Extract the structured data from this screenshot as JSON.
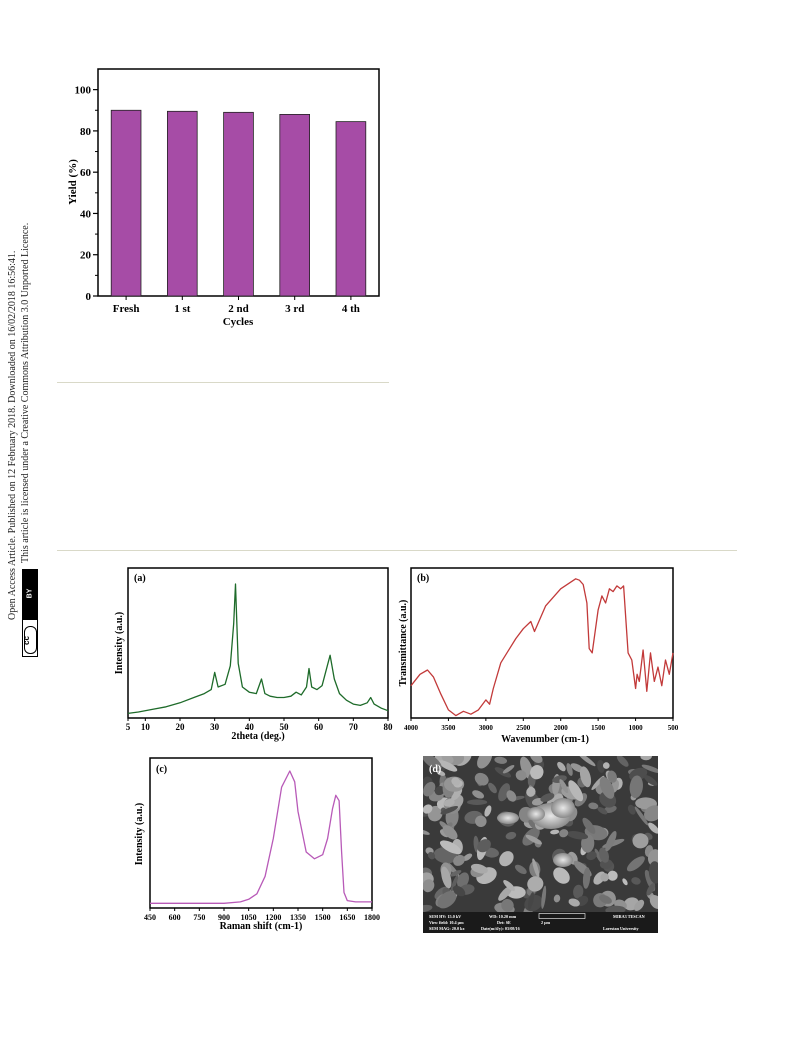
{
  "side_note": {
    "line1": "Open Access Article. Published on 12 February 2018. Downloaded on 16/02/2018 16:56:41.",
    "line2": "This article is licensed under a Creative Commons Attribution 3.0 Unported Licence.",
    "badge_cc": "cc",
    "badge_by": "BY"
  },
  "chart_data": [
    {
      "type": "bar",
      "categories": [
        "Fresh",
        "1 st",
        "2 nd",
        "3 rd",
        "4 th"
      ],
      "values": [
        90,
        89.5,
        89,
        88,
        84.5
      ],
      "xlabel": "Cycles",
      "ylabel": "Yield (%)",
      "ylim": [
        0,
        110
      ],
      "yticks": [
        "0",
        "20",
        "40",
        "60",
        "80",
        "100"
      ],
      "bar_color": "#a64ca6"
    },
    {
      "type": "line",
      "panel_label": "(a)",
      "xlabel": "2theta (deg.)",
      "ylabel": "Intensity (a.u.)",
      "xlim": [
        5,
        80
      ],
      "xticks": [
        "5",
        "10",
        "20",
        "30",
        "40",
        "50",
        "60",
        "70",
        "80"
      ],
      "line_color": "#1e6b2a",
      "x": [
        5,
        8,
        12,
        16,
        20,
        24,
        27,
        29,
        30,
        31,
        33,
        34.5,
        35.5,
        36,
        36.8,
        38,
        40,
        42,
        43.5,
        44.5,
        46,
        48,
        50,
        52,
        53.5,
        55,
        56.5,
        57.2,
        58,
        59.5,
        61,
        62.5,
        63.3,
        64.5,
        66,
        68,
        70,
        72,
        74,
        75,
        76,
        78,
        80
      ],
      "y": [
        2,
        3,
        5,
        7,
        10,
        14,
        17,
        20,
        33,
        22,
        24,
        38,
        70,
        100,
        40,
        22,
        18,
        17,
        28,
        17,
        15,
        14,
        14,
        15,
        18,
        16,
        22,
        36,
        22,
        20,
        23,
        38,
        46,
        28,
        17,
        12,
        9,
        8,
        10,
        14,
        9,
        6,
        4
      ]
    },
    {
      "type": "line",
      "panel_label": "(b)",
      "xlabel": "Wavenumber (cm-1)",
      "ylabel": "Transmittance (a.u.)",
      "xlim": [
        4000,
        500
      ],
      "xticks": [
        "4000",
        "3500",
        "3000",
        "2500",
        "2000",
        "1500",
        "1000",
        "500"
      ],
      "line_color": "#c23a3a",
      "x": [
        4000,
        3880,
        3780,
        3700,
        3600,
        3500,
        3400,
        3300,
        3200,
        3100,
        3000,
        2950,
        2900,
        2800,
        2600,
        2500,
        2400,
        2350,
        2200,
        2000,
        1800,
        1750,
        1700,
        1650,
        1620,
        1580,
        1500,
        1450,
        1400,
        1350,
        1300,
        1250,
        1200,
        1160,
        1100,
        1050,
        1000,
        980,
        950,
        900,
        850,
        800,
        750,
        700,
        650,
        600,
        550,
        500
      ],
      "y": [
        22,
        30,
        33,
        28,
        16,
        5,
        1,
        4,
        2,
        5,
        12,
        9,
        20,
        38,
        55,
        62,
        67,
        60,
        78,
        90,
        97,
        96,
        93,
        80,
        48,
        45,
        75,
        85,
        80,
        90,
        88,
        92,
        90,
        92,
        45,
        40,
        20,
        30,
        25,
        47,
        18,
        45,
        25,
        35,
        22,
        40,
        30,
        45
      ]
    },
    {
      "type": "line",
      "panel_label": "(c)",
      "xlabel": "Raman shift (cm-1)",
      "ylabel": "Intensity (a.u.)",
      "xlim": [
        450,
        1800
      ],
      "xticks": [
        "450",
        "600",
        "750",
        "900",
        "1050",
        "1200",
        "1350",
        "1500",
        "1650",
        "1800"
      ],
      "line_color": "#b85ab8",
      "x": [
        450,
        600,
        750,
        900,
        1000,
        1050,
        1100,
        1150,
        1200,
        1250,
        1300,
        1330,
        1350,
        1400,
        1450,
        1500,
        1530,
        1560,
        1580,
        1600,
        1615,
        1630,
        1650,
        1700,
        1750,
        1800
      ],
      "y": [
        2,
        2,
        2,
        2,
        3,
        5,
        9,
        22,
        50,
        88,
        100,
        92,
        70,
        40,
        35,
        38,
        50,
        72,
        82,
        78,
        40,
        10,
        4,
        3,
        3,
        3
      ]
    }
  ],
  "sem_panel": {
    "label": "(d)",
    "info_row1": [
      "SEM HV: 15.0 kV",
      "WD: 10.20 mm",
      "",
      "MIRA3 TESCAN"
    ],
    "info_row2": [
      "View field: 10.4 µm",
      "Det: SE",
      "2 µm",
      ""
    ],
    "info_row3": [
      "SEM MAG: 20.0 kx",
      "Date(m/d/y): 03/08/16",
      "",
      "Lorestan University"
    ]
  }
}
